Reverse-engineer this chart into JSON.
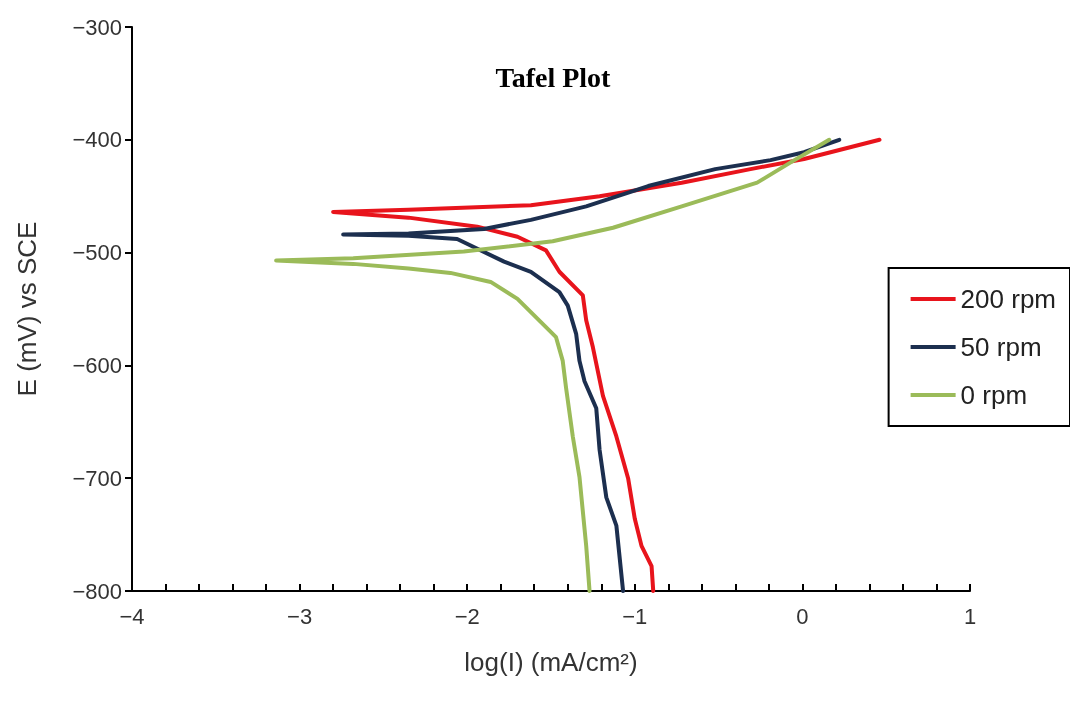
{
  "chart_data": {
    "type": "line",
    "title": "Tafel Plot",
    "xlabel": "log(I) (mA/cm²)",
    "ylabel": "E (mV) vs SCE",
    "xlim": [
      -4,
      1
    ],
    "ylim": [
      -800,
      -300
    ],
    "xticks": [
      -4,
      {
        "value": -3.8,
        "label": null
      },
      {
        "value": -3.6,
        "label": null
      },
      {
        "value": -3.4,
        "label": null
      },
      {
        "value": -3.2,
        "label": null
      },
      -3,
      {
        "value": -2.8,
        "label": null
      },
      {
        "value": -2.6,
        "label": null
      },
      {
        "value": -2.4,
        "label": null
      },
      {
        "value": -2.2,
        "label": null
      },
      -2,
      {
        "value": -1.8,
        "label": null
      },
      {
        "value": -1.6,
        "label": null
      },
      {
        "value": -1.4,
        "label": null
      },
      {
        "value": -1.2,
        "label": null
      },
      -1,
      {
        "value": -0.8,
        "label": null
      },
      {
        "value": -0.6,
        "label": null
      },
      {
        "value": -0.4,
        "label": null
      },
      {
        "value": -0.2,
        "label": null
      },
      0,
      {
        "value": 0.2,
        "label": null
      },
      {
        "value": 0.4,
        "label": null
      },
      {
        "value": 0.6,
        "label": null
      },
      {
        "value": 0.8,
        "label": null
      },
      1
    ],
    "yticks": [
      -800,
      -700,
      -600,
      -500,
      -400,
      -300
    ],
    "grid": false,
    "legend": "right",
    "marker": "none",
    "line_style": "solid",
    "series": [
      {
        "name": "200 rpm",
        "color": "#e8141c",
        "x": [
          -0.89,
          -0.9,
          -0.96,
          -1.0,
          -1.04,
          -1.11,
          -1.19,
          -1.25,
          -1.29,
          -1.31,
          -1.45,
          -1.53,
          -1.7,
          -1.94,
          -2.35,
          -2.8,
          -2.35,
          -1.62,
          -1.21,
          -0.72,
          -0.31,
          0.01,
          0.46
        ],
        "values": [
          -800,
          -778,
          -760,
          -736,
          -700,
          -663,
          -627,
          -584,
          -560,
          -538,
          -517,
          -498,
          -486,
          -477,
          -469,
          -464,
          -462,
          -458,
          -450,
          -438,
          -426,
          -417,
          -400
        ]
      },
      {
        "name": "50 rpm",
        "color": "#1c2f4f",
        "x": [
          -1.07,
          -1.11,
          -1.17,
          -1.21,
          -1.23,
          -1.3,
          -1.33,
          -1.35,
          -1.4,
          -1.45,
          -1.62,
          -1.78,
          -2.06,
          -2.35,
          -2.74,
          -2.35,
          -1.9,
          -1.62,
          -1.29,
          -0.92,
          -0.52,
          -0.19,
          0.01,
          0.22
        ],
        "values": [
          -800,
          -742,
          -717,
          -675,
          -638,
          -614,
          -596,
          -572,
          -547,
          -535,
          -517,
          -508,
          -488,
          -485,
          -484,
          -483,
          -479,
          -471,
          -459,
          -441,
          -426,
          -418,
          -411,
          -400
        ]
      },
      {
        "name": "0 rpm",
        "color": "#9bbb59",
        "x": [
          -1.27,
          -1.29,
          -1.33,
          -1.37,
          -1.41,
          -1.43,
          -1.47,
          -1.53,
          -1.7,
          -1.86,
          -2.1,
          -2.35,
          -2.68,
          -3.14,
          -2.68,
          -2.02,
          -1.49,
          -1.13,
          -0.72,
          -0.27,
          -0.07,
          0.16
        ],
        "values": [
          -800,
          -760,
          -699,
          -663,
          -620,
          -596,
          -575,
          -566,
          -541,
          -526,
          -518,
          -514,
          -510,
          -507,
          -505,
          -499,
          -490,
          -478,
          -459,
          -438,
          -420,
          -400
        ]
      }
    ]
  }
}
